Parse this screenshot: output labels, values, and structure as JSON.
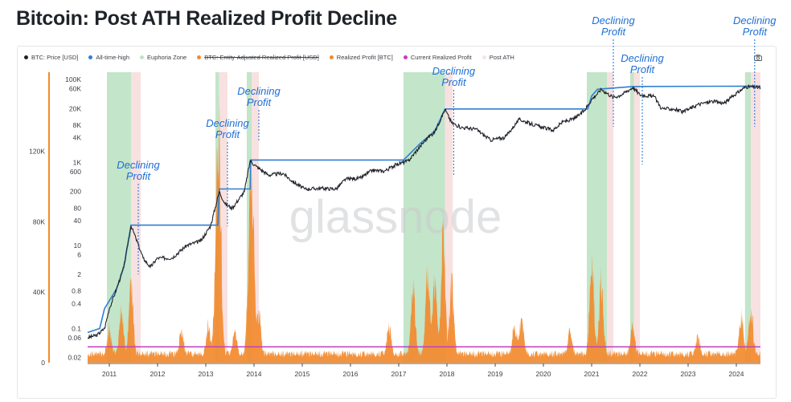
{
  "title": "Bitcoin: Post ATH Realized Profit Decline",
  "watermark": "glassnode",
  "legend": [
    {
      "label": "BTC: Price [USD]",
      "color": "#1f2329",
      "strike": false
    },
    {
      "label": "All-time-high",
      "color": "#2f7fd1",
      "strike": false
    },
    {
      "label": "Euphoria Zone",
      "color": "#bfe3c4",
      "strike": false
    },
    {
      "label": "BTC: Entity-Adjusted Realized Profit [USD]",
      "color": "#f28a2e",
      "strike": true
    },
    {
      "label": "Realized Profit [BTC]",
      "color": "#f28a2e",
      "strike": false
    },
    {
      "label": "Current Realized Profit",
      "color": "#c13fc2",
      "strike": false
    },
    {
      "label": "Post ATH",
      "color": "#f7e3e3",
      "strike": false
    }
  ],
  "camera_icon": "camera-icon",
  "annotation_text": [
    "Declining",
    "Profit"
  ],
  "chart_data": {
    "type": "line",
    "title": "Bitcoin: Post ATH Realized Profit Decline",
    "x_ticks": [
      "2011",
      "2012",
      "2013",
      "2014",
      "2015",
      "2016",
      "2017",
      "2018",
      "2019",
      "2020",
      "2021",
      "2022",
      "2023",
      "2024"
    ],
    "x_range": [
      2010.55,
      2024.5
    ],
    "y_left_log": {
      "scale": "log",
      "range": [
        0.015,
        150000
      ],
      "ticks": [
        "100K",
        "60K",
        "20K",
        "8K",
        "4K",
        "1K",
        "600",
        "200",
        "80",
        "40",
        "10",
        "6",
        "2",
        "0.8",
        "0.4",
        "0.1",
        "0.06",
        "0.02"
      ],
      "tick_values": [
        100000,
        60000,
        20000,
        8000,
        4000,
        1000,
        600,
        200,
        80,
        40,
        10,
        6,
        2,
        0.8,
        0.4,
        0.1,
        0.06,
        0.02
      ]
    },
    "y_right_linear": {
      "range": [
        0,
        165000
      ],
      "ticks": [
        "120K",
        "80K",
        "40K",
        "0"
      ],
      "tick_values": [
        120000,
        80000,
        40000,
        0
      ]
    },
    "series": [
      {
        "name": "BTC: Price [USD]",
        "color": "#1f2329",
        "points": [
          [
            2010.55,
            0.06
          ],
          [
            2010.75,
            0.07
          ],
          [
            2010.9,
            0.1
          ],
          [
            2011.0,
            0.3
          ],
          [
            2011.15,
            0.9
          ],
          [
            2011.3,
            3
          ],
          [
            2011.45,
            30
          ],
          [
            2011.55,
            15
          ],
          [
            2011.7,
            5
          ],
          [
            2011.85,
            3
          ],
          [
            2012.0,
            5
          ],
          [
            2012.3,
            5
          ],
          [
            2012.6,
            10
          ],
          [
            2012.9,
            13
          ],
          [
            2013.1,
            30
          ],
          [
            2013.28,
            200
          ],
          [
            2013.4,
            100
          ],
          [
            2013.55,
            80
          ],
          [
            2013.8,
            200
          ],
          [
            2013.92,
            1100
          ],
          [
            2014.05,
            800
          ],
          [
            2014.3,
            500
          ],
          [
            2014.6,
            550
          ],
          [
            2014.8,
            350
          ],
          [
            2015.05,
            230
          ],
          [
            2015.4,
            240
          ],
          [
            2015.7,
            230
          ],
          [
            2015.9,
            400
          ],
          [
            2016.2,
            420
          ],
          [
            2016.45,
            650
          ],
          [
            2016.7,
            620
          ],
          [
            2016.95,
            900
          ],
          [
            2017.2,
            1100
          ],
          [
            2017.45,
            2500
          ],
          [
            2017.6,
            4000
          ],
          [
            2017.75,
            5500
          ],
          [
            2017.96,
            19000
          ],
          [
            2018.1,
            9000
          ],
          [
            2018.3,
            7000
          ],
          [
            2018.6,
            6400
          ],
          [
            2018.9,
            3500
          ],
          [
            2019.2,
            4000
          ],
          [
            2019.5,
            11000
          ],
          [
            2019.75,
            8500
          ],
          [
            2019.95,
            7200
          ],
          [
            2020.2,
            6000
          ],
          [
            2020.4,
            9500
          ],
          [
            2020.65,
            11500
          ],
          [
            2020.85,
            18000
          ],
          [
            2021.0,
            33000
          ],
          [
            2021.2,
            58000
          ],
          [
            2021.45,
            37000
          ],
          [
            2021.6,
            42000
          ],
          [
            2021.86,
            65000
          ],
          [
            2022.0,
            43000
          ],
          [
            2022.3,
            39000
          ],
          [
            2022.45,
            20000
          ],
          [
            2022.7,
            19500
          ],
          [
            2022.9,
            16500
          ],
          [
            2023.2,
            25000
          ],
          [
            2023.5,
            30000
          ],
          [
            2023.75,
            27000
          ],
          [
            2023.95,
            42000
          ],
          [
            2024.2,
            68000
          ],
          [
            2024.5,
            64000
          ]
        ]
      },
      {
        "name": "All-time-high",
        "color": "#2f7fd1",
        "points": [
          [
            2010.55,
            0.08
          ],
          [
            2010.8,
            0.1
          ],
          [
            2010.9,
            0.3
          ],
          [
            2011.15,
            0.9
          ],
          [
            2011.3,
            3
          ],
          [
            2011.45,
            31
          ],
          [
            2013.25,
            31
          ],
          [
            2013.28,
            230
          ],
          [
            2013.92,
            230
          ],
          [
            2013.93,
            1150
          ],
          [
            2017.1,
            1150
          ],
          [
            2017.45,
            2900
          ],
          [
            2017.75,
            5800
          ],
          [
            2017.96,
            19500
          ],
          [
            2020.92,
            19500
          ],
          [
            2021.0,
            40000
          ],
          [
            2021.12,
            58000
          ],
          [
            2021.86,
            68000
          ],
          [
            2024.2,
            69000
          ],
          [
            2024.5,
            69000
          ]
        ]
      },
      {
        "name": "Realized Profit [BTC]",
        "color": "#f28a2e",
        "peaks": [
          [
            2011.0,
            18000
          ],
          [
            2011.25,
            30000
          ],
          [
            2011.45,
            50000
          ],
          [
            2012.5,
            15000
          ],
          [
            2013.05,
            20000
          ],
          [
            2013.22,
            65000
          ],
          [
            2013.28,
            130000
          ],
          [
            2013.6,
            15000
          ],
          [
            2013.9,
            60000
          ],
          [
            2013.96,
            108000
          ],
          [
            2014.1,
            28000
          ],
          [
            2016.8,
            20000
          ],
          [
            2017.3,
            46000
          ],
          [
            2017.6,
            58000
          ],
          [
            2017.75,
            50000
          ],
          [
            2017.92,
            82000
          ],
          [
            2018.1,
            50000
          ],
          [
            2019.4,
            21000
          ],
          [
            2019.55,
            25000
          ],
          [
            2020.55,
            17000
          ],
          [
            2021.0,
            68000
          ],
          [
            2021.2,
            55000
          ],
          [
            2021.85,
            18000
          ],
          [
            2023.2,
            12000
          ],
          [
            2024.1,
            28000
          ],
          [
            2024.3,
            35000
          ]
        ]
      },
      {
        "name": "Current Realized Profit",
        "color": "#c13fc2",
        "value": 9000
      }
    ],
    "euphoria_zones": [
      [
        2010.95,
        2011.45
      ],
      [
        2013.2,
        2013.28
      ],
      [
        2013.85,
        2013.95
      ],
      [
        2017.1,
        2017.96
      ],
      [
        2020.9,
        2021.32
      ],
      [
        2021.8,
        2021.88
      ],
      [
        2024.18,
        2024.3
      ]
    ],
    "post_ath_zones": [
      [
        2011.45,
        2011.65
      ],
      [
        2013.28,
        2013.45
      ],
      [
        2013.95,
        2014.1
      ],
      [
        2017.96,
        2018.12
      ],
      [
        2021.32,
        2021.45
      ],
      [
        2021.88,
        2022.0
      ],
      [
        2024.3,
        2024.5
      ]
    ],
    "annotations": [
      {
        "text": "Declining Profit",
        "x": 2011.6
      },
      {
        "text": "Declining Profit",
        "x": 2013.45
      },
      {
        "text": "Declining Profit",
        "x": 2014.1
      },
      {
        "text": "Declining Profit",
        "x": 2018.14
      },
      {
        "text": "Declining Profit",
        "x": 2021.45
      },
      {
        "text": "Declining Profit",
        "x": 2022.05
      },
      {
        "text": "Declining Profit",
        "x": 2024.38
      }
    ]
  }
}
